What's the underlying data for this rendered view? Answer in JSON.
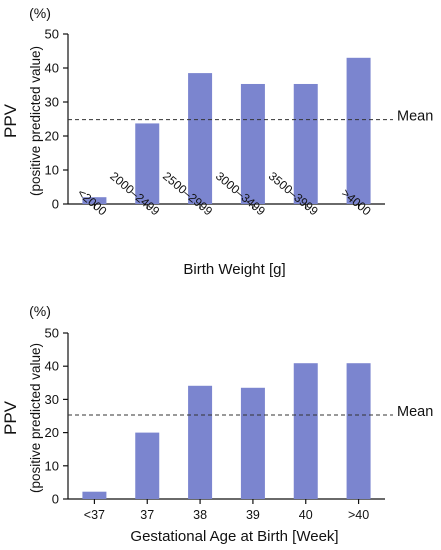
{
  "chart_data": [
    {
      "type": "bar",
      "unit_label": "(%)",
      "ylabel_main": "PPV",
      "ylabel_sub": "(positive predicted value)",
      "xlabel": "Birth Weight [g]",
      "categories": [
        "<2000",
        "2000–2499",
        "2500–2999",
        "3000–3499",
        "3500–3999",
        ">4000"
      ],
      "values": [
        2,
        23.7,
        38.5,
        35.3,
        35.3,
        43
      ],
      "ylim": [
        0,
        50
      ],
      "yticks": [
        "0",
        "10",
        "20",
        "30",
        "40",
        "50"
      ],
      "mean_value": 24.8,
      "mean_label": "Mean",
      "bar_color": "#7b85cf"
    },
    {
      "type": "bar",
      "unit_label": "(%)",
      "ylabel_main": "PPV",
      "ylabel_sub": "(positive predicted value)",
      "xlabel": "Gestational Age at Birth [Week]",
      "categories": [
        "<37",
        "37",
        "38",
        "39",
        "40",
        ">40"
      ],
      "values": [
        2.2,
        20,
        34.1,
        33.5,
        40.9,
        40.9
      ],
      "ylim": [
        0,
        50
      ],
      "yticks": [
        "0",
        "10",
        "20",
        "30",
        "40",
        "50"
      ],
      "mean_value": 25.3,
      "mean_label": "Mean",
      "bar_color": "#7b85cf"
    }
  ]
}
